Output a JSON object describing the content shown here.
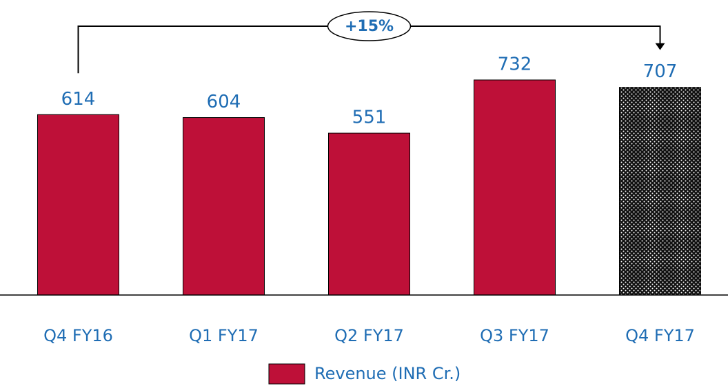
{
  "chart_data": {
    "type": "bar",
    "categories": [
      "Q4 FY16",
      "Q1 FY17",
      "Q2 FY17",
      "Q3 FY17",
      "Q4 FY17"
    ],
    "series": [
      {
        "name": "Revenue (INR Cr.)",
        "color": "#be1038",
        "values": [
          614,
          604,
          551,
          732,
          707
        ],
        "dotted": [
          false,
          false,
          false,
          false,
          true
        ]
      }
    ],
    "ylim": [
      0,
      800
    ],
    "annotation": "+15%",
    "label_color": "#1f6db4"
  }
}
